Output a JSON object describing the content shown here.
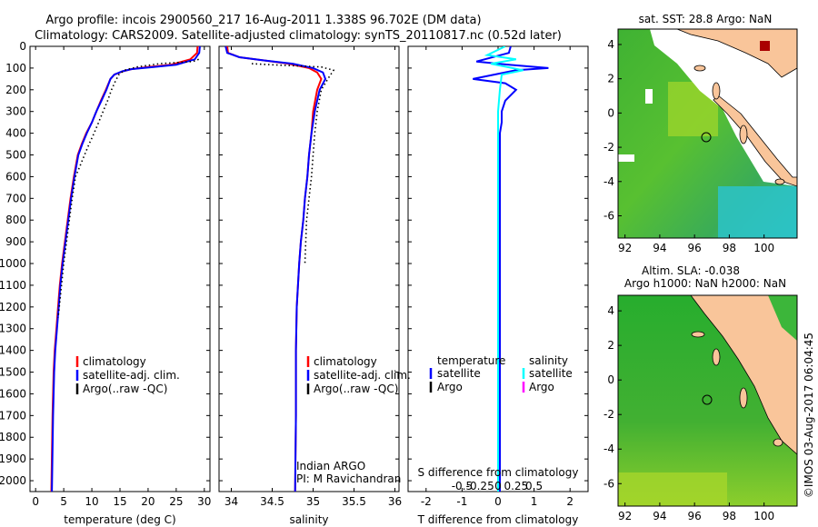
{
  "header": {
    "title_line1": "Argo profile: incois 2900560_217 16-Aug-2011 1.338S 96.702E (DM data)",
    "title_line2": "Climatology: CARS2009. Satellite-adjusted climatology: synTS_20110817.nc (0.52d later)"
  },
  "colors": {
    "climatology": "#ff0000",
    "satellite": "#0000ff",
    "argo": "#000000",
    "sal_satellite": "#00ffff",
    "sal_argo": "#ff00ff",
    "land": "#f9c59a"
  },
  "chart_data": [
    {
      "type": "line",
      "id": "temperature",
      "xlabel": "temperature (deg C)",
      "xlim": [
        -1,
        31
      ],
      "ylim": [
        0,
        2050
      ],
      "xticks": [
        0,
        5,
        10,
        15,
        20,
        25,
        30
      ],
      "yticks": [
        0,
        100,
        200,
        300,
        400,
        500,
        600,
        700,
        800,
        900,
        1000,
        1100,
        1200,
        1300,
        1400,
        1500,
        1600,
        1700,
        1800,
        1900,
        2000
      ],
      "legend": [
        "climatology",
        "satellite-adj. clim.",
        "Argo(..raw -QC)"
      ],
      "series": [
        {
          "name": "climatology",
          "color": "#ff0000",
          "style": "solid",
          "x": [
            28.8,
            28.7,
            27.5,
            24,
            20,
            17,
            15.5,
            14,
            13.3,
            12.5,
            11.6,
            10.8,
            10,
            9,
            8.2,
            7.5,
            6.8,
            6.2,
            5.7,
            5.2,
            4.7,
            4.3,
            4.0,
            3.7,
            3.4,
            3.2,
            3.0,
            2.8
          ],
          "y": [
            0,
            30,
            60,
            85,
            95,
            105,
            115,
            130,
            150,
            200,
            250,
            300,
            350,
            400,
            450,
            500,
            600,
            700,
            800,
            900,
            1000,
            1100,
            1200,
            1300,
            1400,
            1500,
            1700,
            2050
          ]
        },
        {
          "name": "satellite-adj. clim.",
          "color": "#0000ff",
          "style": "solid",
          "x": [
            29.2,
            29.1,
            28.3,
            25,
            21,
            17,
            15.4,
            14,
            13.3,
            12.6,
            11.7,
            10.8,
            10,
            9.1,
            8.3,
            7.6,
            6.9,
            6.3,
            5.8,
            5.3,
            4.8,
            4.4,
            4.1,
            3.8,
            3.5,
            3.3,
            3.1,
            2.9
          ],
          "y": [
            0,
            30,
            60,
            85,
            95,
            105,
            115,
            130,
            150,
            200,
            250,
            300,
            350,
            400,
            450,
            500,
            600,
            700,
            800,
            900,
            1000,
            1100,
            1200,
            1300,
            1400,
            1500,
            1700,
            2050
          ]
        },
        {
          "name": "Argo(..raw -QC)",
          "color": "#000000",
          "style": "dotted",
          "x": [
            29.0,
            28.0,
            22,
            18,
            15.8,
            14.8,
            14.2,
            13.5,
            12.8,
            12.0,
            11.2,
            10.4,
            9.5,
            8.7,
            7.9,
            7.1,
            6.5,
            6.0,
            5.5,
            5.0,
            4.6,
            4.2,
            4.0
          ],
          "y": [
            60,
            70,
            80,
            95,
            110,
            130,
            160,
            200,
            250,
            300,
            350,
            400,
            450,
            500,
            550,
            600,
            700,
            800,
            900,
            1000,
            1100,
            1200,
            1250
          ]
        }
      ]
    },
    {
      "type": "line",
      "id": "salinity",
      "xlabel": "salinity",
      "xlim": [
        33.85,
        36.05
      ],
      "ylim": [
        0,
        2050
      ],
      "xticks": [
        34,
        34.5,
        35,
        35.5,
        36
      ],
      "legend": [
        "climatology",
        "satellite-adj. clim.",
        "Argo(..raw -QC)"
      ],
      "annotation_line1": "Indian ARGO",
      "annotation_line2": "PI: M Ravichandran",
      "series": [
        {
          "name": "climatology",
          "color": "#ff0000",
          "style": "solid",
          "x": [
            33.95,
            33.96,
            34.1,
            34.4,
            34.7,
            34.95,
            35.05,
            35.1,
            35.05,
            35.0,
            34.98,
            34.95,
            34.93,
            34.9,
            34.88,
            34.85,
            34.83,
            34.8,
            34.79,
            34.79,
            34.78
          ],
          "y": [
            0,
            30,
            50,
            65,
            80,
            100,
            120,
            150,
            200,
            300,
            400,
            500,
            600,
            700,
            800,
            900,
            1000,
            1200,
            1400,
            1700,
            2050
          ]
        },
        {
          "name": "satellite-adj. clim.",
          "color": "#0000ff",
          "style": "solid",
          "x": [
            33.93,
            33.95,
            34.1,
            34.4,
            34.75,
            35.0,
            35.12,
            35.15,
            35.08,
            35.02,
            34.98,
            34.95,
            34.93,
            34.9,
            34.88,
            34.85,
            34.83,
            34.8,
            34.79,
            34.79,
            34.78
          ],
          "y": [
            0,
            30,
            50,
            65,
            80,
            100,
            120,
            150,
            200,
            300,
            400,
            500,
            600,
            700,
            800,
            900,
            1000,
            1200,
            1400,
            1700,
            2050
          ]
        },
        {
          "name": "Argo(..raw -QC)",
          "color": "#000000",
          "style": "dotted",
          "x": [
            34.25,
            34.5,
            35.1,
            35.25,
            35.18,
            35.1,
            35.05,
            35.02,
            35.0,
            34.98,
            34.95,
            34.92,
            34.9
          ],
          "y": [
            80,
            85,
            95,
            110,
            150,
            200,
            300,
            400,
            500,
            600,
            700,
            800,
            1000
          ]
        }
      ]
    },
    {
      "type": "line",
      "id": "difference",
      "xlabel": "T difference from climatology",
      "xlabel_top": "S difference from climatology",
      "xlim": [
        -2.5,
        2.5
      ],
      "ylim": [
        0,
        2050
      ],
      "xticks": [
        -2,
        -1,
        0,
        1,
        2
      ],
      "top_ticks": [
        -0.5,
        -0.25,
        0,
        0.25,
        0.5
      ],
      "legend_temperature_title": "temperature",
      "legend_salinity_title": "salinity",
      "legend_satellite": "satellite",
      "legend_argo": "Argo",
      "series": [
        {
          "name": "temperature satellite",
          "color": "#0000ff",
          "style": "solid",
          "x": [
            0.35,
            0.3,
            -0.6,
            0.3,
            1.4,
            0.5,
            -0.7,
            0.2,
            0.5,
            0.2,
            0.1,
            0.1,
            0.05,
            0.05,
            0.05,
            0.05,
            0.05,
            0.05
          ],
          "y": [
            0,
            30,
            70,
            85,
            100,
            110,
            150,
            170,
            200,
            250,
            300,
            350,
            400,
            500,
            700,
            1000,
            1500,
            2050
          ]
        },
        {
          "name": "salinity satellite",
          "color": "#00ffff",
          "style": "solid",
          "x": [
            0.2,
            -0.3,
            0.5,
            -0.2,
            0.7,
            0.1,
            0.05,
            0.0,
            0.0,
            0.0,
            0.0,
            0.0
          ],
          "y": [
            0,
            40,
            60,
            80,
            110,
            130,
            200,
            300,
            500,
            1000,
            1500,
            2050
          ]
        }
      ]
    }
  ],
  "maps": {
    "top": {
      "title": "sat. SST: 28.8 Argo: NaN",
      "xticks": [
        92,
        94,
        96,
        98,
        100
      ],
      "yticks": [
        4,
        2,
        0,
        -2,
        -4,
        -6
      ]
    },
    "bottom": {
      "title_line1": "Altim. SLA: -0.038",
      "title_line2": "Argo h1000: NaN h2000: NaN",
      "xticks": [
        92,
        94,
        96,
        98,
        100
      ],
      "yticks": [
        4,
        2,
        0,
        -2,
        -4,
        -6
      ]
    }
  },
  "footer": {
    "credit": "©IMOS 03-Aug-2017 06:04:45"
  }
}
